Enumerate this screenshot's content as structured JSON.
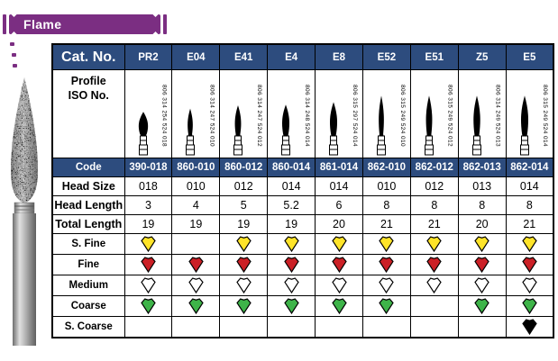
{
  "banner": {
    "title": "Flame",
    "color": "#7b2e82"
  },
  "table": {
    "header_bg": "#2d4c7e",
    "row_labels": {
      "cat_no": "Cat. No.",
      "profile": "Profile",
      "iso_no": "ISO No.",
      "code": "Code",
      "head_size": "Head Size",
      "head_length": "Head Length",
      "total_length": "Total Length",
      "s_fine": "S. Fine",
      "fine": "Fine",
      "medium": "Medium",
      "coarse": "Coarse",
      "s_coarse": "S. Coarse"
    },
    "grit_colors": {
      "s_fine": "#ffe428",
      "fine": "#cb2026",
      "medium": "#ffffff",
      "coarse": "#3eb449",
      "s_coarse": "#000000"
    },
    "columns": [
      {
        "cat_no": "PR2",
        "iso": "806 314 254 524 018",
        "code": "390-018",
        "head_size": "018",
        "head_length": "3",
        "total_length": "19",
        "s_fine": true,
        "fine": true,
        "medium": true,
        "coarse": true,
        "s_coarse": false
      },
      {
        "cat_no": "E04",
        "iso": "806 314 247 524 010",
        "code": "860-010",
        "head_size": "010",
        "head_length": "4",
        "total_length": "19",
        "s_fine": false,
        "fine": true,
        "medium": true,
        "coarse": true,
        "s_coarse": false
      },
      {
        "cat_no": "E41",
        "iso": "806 314 247 524 012",
        "code": "860-012",
        "head_size": "012",
        "head_length": "5",
        "total_length": "19",
        "s_fine": true,
        "fine": true,
        "medium": true,
        "coarse": true,
        "s_coarse": false
      },
      {
        "cat_no": "E4",
        "iso": "806 314 248 524 014",
        "code": "860-014",
        "head_size": "014",
        "head_length": "5.2",
        "total_length": "19",
        "s_fine": true,
        "fine": true,
        "medium": true,
        "coarse": true,
        "s_coarse": false
      },
      {
        "cat_no": "E8",
        "iso": "806 315 297 524 014",
        "code": "861-014",
        "head_size": "014",
        "head_length": "6",
        "total_length": "20",
        "s_fine": true,
        "fine": true,
        "medium": true,
        "coarse": true,
        "s_coarse": false
      },
      {
        "cat_no": "E52",
        "iso": "806 315 249 524 010",
        "code": "862-010",
        "head_size": "010",
        "head_length": "8",
        "total_length": "21",
        "s_fine": true,
        "fine": true,
        "medium": true,
        "coarse": true,
        "s_coarse": false
      },
      {
        "cat_no": "E51",
        "iso": "806 315 249 524 012",
        "code": "862-012",
        "head_size": "012",
        "head_length": "8",
        "total_length": "21",
        "s_fine": true,
        "fine": true,
        "medium": true,
        "coarse": false,
        "s_coarse": false
      },
      {
        "cat_no": "Z5",
        "iso": "806 314 249 524 013",
        "code": "862-013",
        "head_size": "013",
        "head_length": "8",
        "total_length": "20",
        "s_fine": true,
        "fine": true,
        "medium": true,
        "coarse": true,
        "s_coarse": false
      },
      {
        "cat_no": "E5",
        "iso": "806 315 249 524 014",
        "code": "862-014",
        "head_size": "014",
        "head_length": "8",
        "total_length": "21",
        "s_fine": true,
        "fine": true,
        "medium": true,
        "coarse": true,
        "s_coarse": true
      }
    ]
  }
}
